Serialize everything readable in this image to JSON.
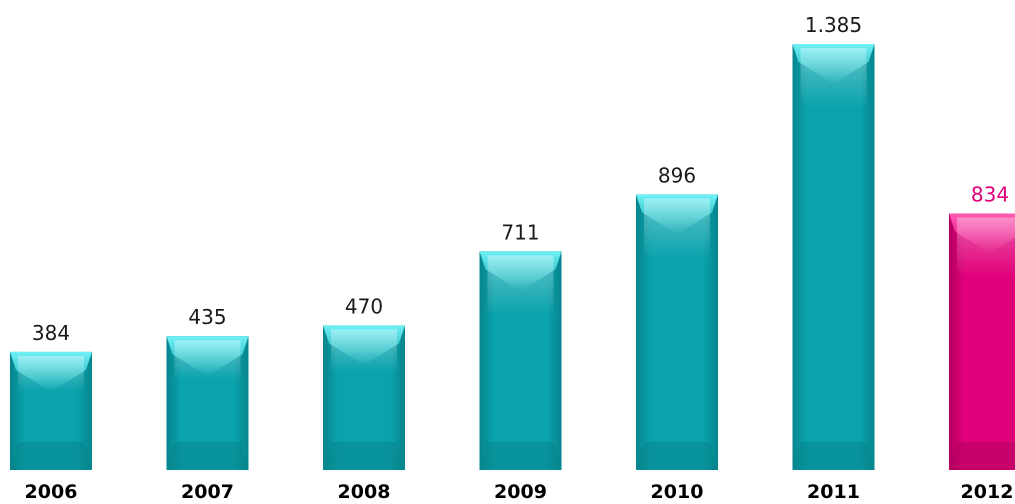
{
  "chart_data": {
    "type": "bar",
    "categories": [
      "2006",
      "2007",
      "2008",
      "2009",
      "2010",
      "2011",
      "2012"
    ],
    "values": [
      384,
      435,
      470,
      711,
      896,
      1385,
      834
    ],
    "value_labels": [
      "384",
      "435",
      "470",
      "711",
      "896",
      "1.385",
      "834"
    ],
    "ylim": [
      0,
      1385
    ],
    "grid": false,
    "legend": "none",
    "colors": {
      "bar": "#0aa3ad",
      "bar_highlight": "#6ff0f5",
      "bar_dark": "#07858d",
      "highlight_bar": "#e0007a",
      "highlight_bar_highlight": "#ff5cb4",
      "highlight_bar_dark": "#b3005f",
      "value_label": "#1a1a1a",
      "highlight_value_label": "#e0007a"
    },
    "highlight_index": 6
  }
}
